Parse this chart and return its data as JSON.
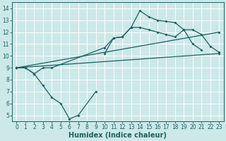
{
  "xlabel": "Humidex (Indice chaleur)",
  "bg_color": "#cce8e8",
  "grid_color": "#b0d8d8",
  "line_color": "#1a6060",
  "xlim": [
    -0.5,
    23.5
  ],
  "ylim": [
    4.5,
    14.5
  ],
  "xticks": [
    0,
    1,
    2,
    3,
    4,
    5,
    6,
    7,
    8,
    9,
    10,
    11,
    12,
    13,
    14,
    15,
    16,
    17,
    18,
    19,
    20,
    21,
    22,
    23
  ],
  "yticks": [
    5,
    6,
    7,
    8,
    9,
    10,
    11,
    12,
    13,
    14
  ],
  "lines": [
    {
      "x": [
        0,
        1,
        2,
        3,
        4,
        5,
        6,
        7,
        9
      ],
      "y": [
        9.0,
        9.0,
        8.5,
        7.5,
        6.5,
        6.0,
        4.7,
        5.0,
        7.0
      ]
    },
    {
      "x": [
        10,
        11,
        12,
        13,
        14,
        15,
        16,
        17,
        18,
        19,
        20,
        21
      ],
      "y": [
        10.2,
        11.5,
        11.6,
        12.4,
        13.8,
        13.3,
        13.0,
        12.9,
        12.8,
        12.2,
        11.0,
        10.5
      ]
    },
    {
      "x": [
        0,
        1,
        2,
        3,
        4,
        10,
        11,
        12,
        13,
        14,
        15,
        16,
        17,
        18,
        19,
        20,
        21,
        22,
        23
      ],
      "y": [
        9.0,
        9.0,
        8.5,
        9.0,
        9.0,
        10.7,
        11.5,
        11.6,
        12.4,
        12.4,
        12.2,
        12.0,
        11.8,
        11.6,
        12.2,
        12.2,
        11.8,
        10.8,
        10.3
      ]
    },
    {
      "x": [
        0,
        23
      ],
      "y": [
        9.0,
        12.0
      ]
    },
    {
      "x": [
        0,
        23
      ],
      "y": [
        9.0,
        10.2
      ]
    }
  ]
}
